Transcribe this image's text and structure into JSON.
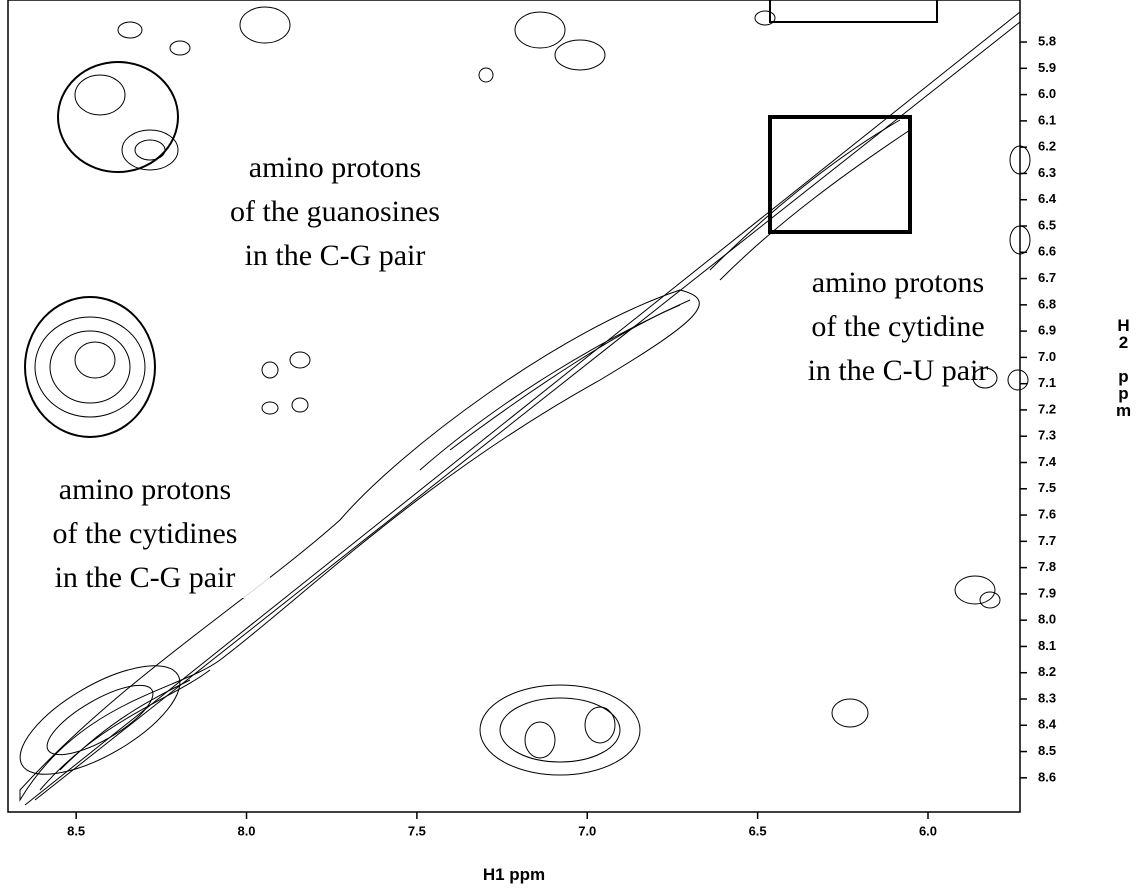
{
  "chart_data": {
    "type": "contour",
    "x_label": "H1 ppm",
    "y_label": "H2 ppm",
    "xlim": [
      8.7,
      5.73
    ],
    "ylim": [
      5.64,
      8.73
    ],
    "xticks": [
      8.5,
      {
        "value": 8,
        "label": "8.0"
      },
      7.5,
      {
        "value": 7,
        "label": "7.0"
      },
      6.5,
      {
        "value": 6,
        "label": "6.0"
      }
    ],
    "yticks": [
      5.8,
      5.9,
      {
        "value": 6,
        "label": "6.0"
      },
      6.1,
      6.2,
      6.3,
      6.4,
      6.5,
      6.6,
      6.7,
      6.8,
      6.9,
      {
        "value": 7,
        "label": "7.0"
      },
      7.1,
      7.2,
      7.3,
      7.4,
      7.5,
      7.6,
      7.7,
      7.8,
      7.9,
      {
        "value": 8,
        "label": "8.0"
      },
      8.1,
      8.2,
      8.3,
      8.4,
      8.5,
      8.6
    ],
    "annotations": [
      {
        "lines": [
          "amino protons",
          "of the guanosines",
          "in the C-G pair"
        ]
      },
      {
        "lines": [
          "amino protons",
          "of the cytidine",
          "in the C-U pair"
        ]
      },
      {
        "lines": [
          "amino protons",
          "of the cytidines",
          "in the C-G pair"
        ]
      }
    ]
  }
}
